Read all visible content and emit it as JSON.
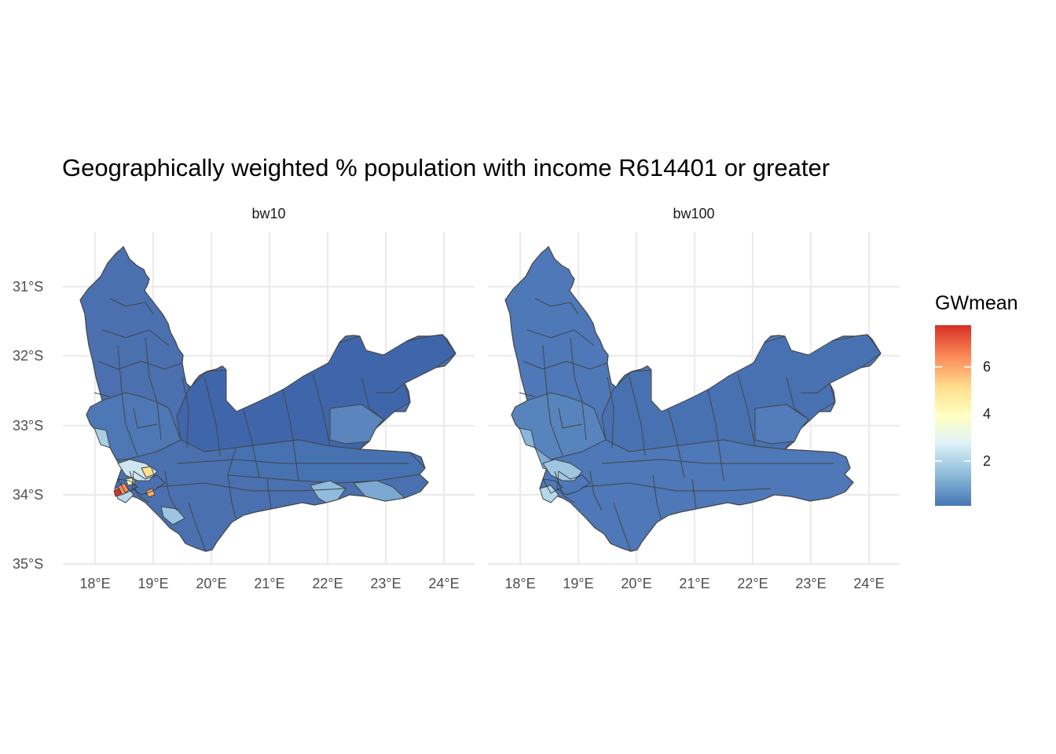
{
  "title": "Geographically weighted % population with income R614401 or greater",
  "facets": [
    {
      "name": "bw10"
    },
    {
      "name": "bw100"
    }
  ],
  "axes": {
    "x_ticks": [
      "18°E",
      "19°E",
      "20°E",
      "21°E",
      "22°E",
      "23°E",
      "24°E"
    ],
    "y_ticks": [
      "31°S",
      "32°S",
      "33°S",
      "34°S",
      "35°S"
    ]
  },
  "legend": {
    "title": "GWmean",
    "ticks": [
      "2",
      "4",
      "6"
    ],
    "colors": [
      "#4575b4",
      "#91bfdb",
      "#e0f3f8",
      "#ffffbf",
      "#fee090",
      "#fc8d59",
      "#d73027"
    ]
  },
  "map_data": {
    "type": "choropleth",
    "xlim": [
      17.8,
      24.3
    ],
    "ylim_south": [
      30.4,
      35.0
    ],
    "region": "Western Cape, South Africa"
  }
}
